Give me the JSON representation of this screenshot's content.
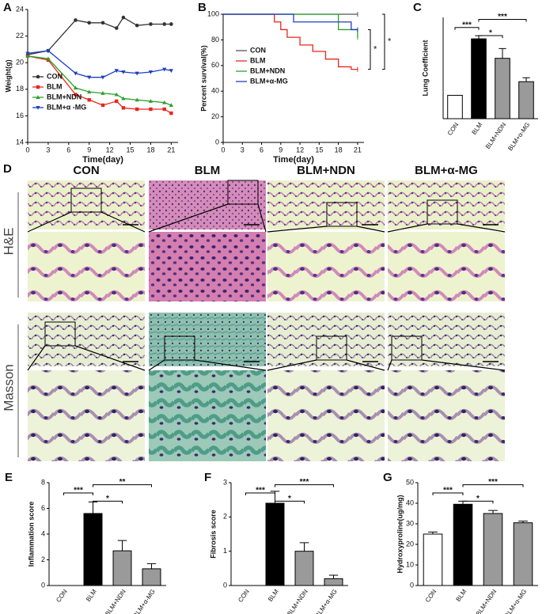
{
  "chart_data": [
    {
      "type": "line",
      "panel": "A",
      "xlabel": "Time(day)",
      "ylabel": "Weight(g)",
      "x": [
        0,
        3,
        7,
        9,
        11,
        13,
        14,
        16,
        18,
        20,
        21
      ],
      "xlim": [
        0,
        22
      ],
      "xticks": [
        0,
        3,
        6,
        9,
        12,
        15,
        18,
        21
      ],
      "ylim": [
        14,
        24
      ],
      "yticks": [
        14,
        16,
        18,
        20,
        22,
        24
      ],
      "legend": "lower left",
      "series": [
        {
          "name": "CON",
          "color": "#333333",
          "marker": "circle",
          "values": [
            20.6,
            20.9,
            23.2,
            23.0,
            23.0,
            22.6,
            23.4,
            22.8,
            22.9,
            22.9,
            22.9
          ]
        },
        {
          "name": "BLM",
          "color": "#e8261c",
          "marker": "square",
          "values": [
            20.5,
            20.2,
            17.6,
            17.2,
            16.8,
            17.1,
            16.6,
            16.5,
            16.5,
            16.5,
            16.2
          ]
        },
        {
          "name": "BLM+NDN",
          "color": "#2ca02c",
          "marker": "triangle",
          "values": [
            20.5,
            20.3,
            18.1,
            17.8,
            17.7,
            17.6,
            17.3,
            17.2,
            17.1,
            17.0,
            16.8
          ]
        },
        {
          "name": "BLM+α -MG",
          "color": "#1f3fbf",
          "marker": "down-triangle",
          "values": [
            20.7,
            20.9,
            19.2,
            18.9,
            18.9,
            19.4,
            19.3,
            19.2,
            19.3,
            19.5,
            19.4
          ]
        }
      ]
    },
    {
      "type": "survival",
      "panel": "B",
      "xlabel": "Time(day)",
      "ylabel": "Percent survival(%)",
      "xlim": [
        0,
        22
      ],
      "xticks": [
        0,
        3,
        6,
        9,
        12,
        15,
        18,
        21
      ],
      "ylim": [
        0,
        100
      ],
      "yticks": [
        0,
        20,
        40,
        60,
        80,
        100
      ],
      "legend": "upper left",
      "annotations": [
        "*",
        "*"
      ],
      "series": [
        {
          "name": "CON",
          "color": "#555555",
          "x": [
            0,
            21
          ],
          "values": [
            100,
            100
          ]
        },
        {
          "name": "BLM",
          "color": "#e8261c",
          "x": [
            0,
            8,
            9,
            10,
            12,
            14,
            16,
            18,
            20,
            21
          ],
          "values": [
            100,
            94,
            88,
            82,
            76,
            71,
            65,
            59,
            57,
            57
          ]
        },
        {
          "name": "BLM+NDN",
          "color": "#2ca02c",
          "x": [
            0,
            18,
            21
          ],
          "values": [
            100,
            88,
            82
          ]
        },
        {
          "name": "BLM+α-MG",
          "color": "#1f3fbf",
          "x": [
            0,
            11,
            20,
            21
          ],
          "values": [
            100,
            94,
            88,
            88
          ]
        }
      ]
    },
    {
      "type": "bar",
      "panel": "C",
      "ylabel": "Lung Coefficient",
      "categories": [
        "CON",
        "BLM",
        "BLM+NDN",
        "BLM+α-MG"
      ],
      "values": [
        6,
        20.5,
        15.5,
        9.5
      ],
      "errors": [
        0,
        0.8,
        2.5,
        1
      ],
      "colors": [
        "#ffffff",
        "#000000",
        "#9a9a9a",
        "#9a9a9a"
      ],
      "ylim": [
        0,
        26
      ],
      "annotations": [
        "***",
        "*",
        "***"
      ]
    },
    {
      "type": "bar",
      "panel": "E",
      "ylabel": "Inflammation score",
      "categories": [
        "CON",
        "BLM",
        "BLM+NDN",
        "BLM+α-MG"
      ],
      "values": [
        0,
        5.6,
        2.7,
        1.3
      ],
      "errors": [
        0,
        0.9,
        0.8,
        0.4
      ],
      "colors": [
        "#ffffff",
        "#000000",
        "#9a9a9a",
        "#9a9a9a"
      ],
      "ylim": [
        0,
        8
      ],
      "yticks": [
        0,
        2,
        4,
        6,
        8
      ],
      "annotations": [
        "***",
        "*",
        "**"
      ]
    },
    {
      "type": "bar",
      "panel": "F",
      "ylabel": "Fibrosis score",
      "categories": [
        "CON",
        "BLM",
        "BLM+NDN",
        "BLM+α-MG"
      ],
      "values": [
        0,
        2.4,
        1.0,
        0.2
      ],
      "errors": [
        0,
        0.35,
        0.25,
        0.1
      ],
      "colors": [
        "#ffffff",
        "#000000",
        "#9a9a9a",
        "#9a9a9a"
      ],
      "ylim": [
        0,
        3
      ],
      "yticks": [
        0,
        1,
        2,
        3
      ],
      "annotations": [
        "***",
        "*",
        "***"
      ]
    },
    {
      "type": "bar",
      "panel": "G",
      "ylabel": "Hydroxyproline(ug/mg)",
      "categories": [
        "CON",
        "BLM",
        "BLM+NDN",
        "BLM+α-MG"
      ],
      "values": [
        25,
        39.5,
        35,
        30.5
      ],
      "errors": [
        1,
        1.5,
        1.5,
        0.8
      ],
      "colors": [
        "#ffffff",
        "#000000",
        "#9a9a9a",
        "#9a9a9a"
      ],
      "ylim": [
        0,
        50
      ],
      "yticks": [
        0,
        10,
        20,
        30,
        40,
        50
      ],
      "annotations": [
        "***",
        "*",
        "***"
      ]
    }
  ],
  "histology": {
    "panel": "D",
    "columns": [
      "CON",
      "BLM",
      "BLM+NDN",
      "BLM+α-MG"
    ],
    "rows": [
      "H&E",
      "Masson"
    ]
  }
}
